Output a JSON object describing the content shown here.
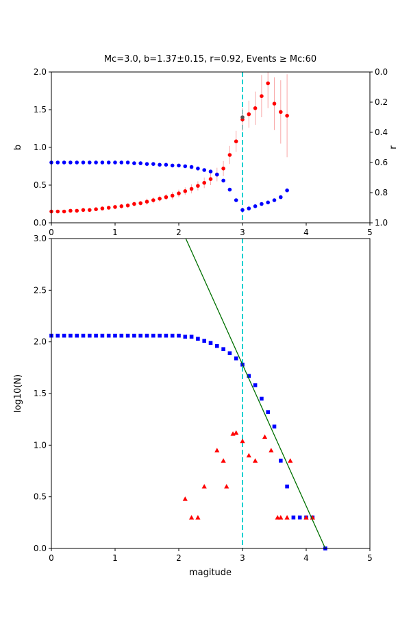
{
  "figure": {
    "background": "#ffffff",
    "accent_colors": {
      "b_series": "#ff0000",
      "r_series": "#0000ff",
      "errorbar": "#f8a8a8",
      "mc_line": "#00cccc",
      "fit_line": "#007000",
      "mc_marker": "#555555"
    }
  },
  "chart_data": [
    {
      "type": "scatter",
      "title": "Mc=3.0, b=1.37±0.15, r=0.92, Events ≥ Mc:60",
      "ylabel_left": "b",
      "ylabel_right": "r",
      "xlim": [
        0,
        5
      ],
      "ylim_left": [
        0,
        2
      ],
      "ylim_right": [
        0,
        1
      ],
      "right_axis_inverted": true,
      "xticks": [
        0,
        1,
        2,
        3,
        4,
        5
      ],
      "yticks_left": [
        "0.0",
        "0.5",
        "1.0",
        "1.5",
        "2.0"
      ],
      "yticks_right": [
        "0.0",
        "0.2",
        "0.4",
        "0.6",
        "0.8",
        "1.0"
      ],
      "grid": false,
      "legend": "none",
      "vline": {
        "x": 3.0,
        "color": "#00cccc",
        "style": "dashed"
      },
      "series": [
        {
          "name": "b-value-vs-cutoff",
          "marker": "circle",
          "color": "#ff0000",
          "errorbar_color": "#f8a8a8",
          "x": [
            0.0,
            0.1,
            0.2,
            0.3,
            0.4,
            0.5,
            0.6,
            0.7,
            0.8,
            0.9,
            1.0,
            1.1,
            1.2,
            1.3,
            1.4,
            1.5,
            1.6,
            1.7,
            1.8,
            1.9,
            2.0,
            2.1,
            2.2,
            2.3,
            2.4,
            2.5,
            2.6,
            2.7,
            2.8,
            2.9,
            3.0,
            3.1,
            3.2,
            3.3,
            3.4,
            3.5,
            3.6,
            3.7
          ],
          "y": [
            0.15,
            0.15,
            0.15,
            0.16,
            0.16,
            0.17,
            0.17,
            0.18,
            0.19,
            0.2,
            0.21,
            0.22,
            0.23,
            0.25,
            0.26,
            0.28,
            0.3,
            0.32,
            0.34,
            0.36,
            0.39,
            0.42,
            0.45,
            0.49,
            0.53,
            0.58,
            0.64,
            0.72,
            0.9,
            1.08,
            1.37,
            1.44,
            1.52,
            1.68,
            1.85,
            1.58,
            1.47,
            1.42
          ],
          "yerr": [
            0.02,
            0.02,
            0.02,
            0.02,
            0.02,
            0.02,
            0.02,
            0.02,
            0.02,
            0.02,
            0.03,
            0.03,
            0.03,
            0.03,
            0.03,
            0.04,
            0.04,
            0.04,
            0.04,
            0.05,
            0.05,
            0.05,
            0.06,
            0.06,
            0.07,
            0.08,
            0.09,
            0.1,
            0.12,
            0.14,
            0.15,
            0.18,
            0.22,
            0.28,
            0.33,
            0.35,
            0.42,
            0.55
          ]
        },
        {
          "name": "r-vs-cutoff",
          "marker": "circle",
          "color": "#0000ff",
          "axis": "right",
          "x": [
            0.0,
            0.1,
            0.2,
            0.3,
            0.4,
            0.5,
            0.6,
            0.7,
            0.8,
            0.9,
            1.0,
            1.1,
            1.2,
            1.3,
            1.4,
            1.5,
            1.6,
            1.7,
            1.8,
            1.9,
            2.0,
            2.1,
            2.2,
            2.3,
            2.4,
            2.5,
            2.6,
            2.7,
            2.8,
            2.9,
            3.0,
            3.1,
            3.2,
            3.3,
            3.4,
            3.5,
            3.6,
            3.7
          ],
          "y": [
            0.6,
            0.6,
            0.6,
            0.6,
            0.6,
            0.6,
            0.6,
            0.6,
            0.6,
            0.6,
            0.6,
            0.6,
            0.6,
            0.605,
            0.605,
            0.61,
            0.61,
            0.615,
            0.615,
            0.62,
            0.62,
            0.625,
            0.63,
            0.64,
            0.65,
            0.66,
            0.68,
            0.72,
            0.78,
            0.85,
            0.915,
            0.905,
            0.89,
            0.875,
            0.865,
            0.85,
            0.83,
            0.785
          ]
        },
        {
          "name": "b-at-mc-marker",
          "marker": "circle",
          "color": "#555555",
          "x": [
            3.0
          ],
          "y": [
            1.4
          ]
        }
      ]
    },
    {
      "type": "scatter",
      "xlabel": "magitude",
      "ylabel": "log10(N)",
      "xlim": [
        0,
        5
      ],
      "ylim": [
        0,
        3
      ],
      "xticks": [
        0,
        1,
        2,
        3,
        4,
        5
      ],
      "yticks": [
        "0.0",
        "0.5",
        "1.0",
        "1.5",
        "2.0",
        "2.5",
        "3.0"
      ],
      "grid": false,
      "legend": "none",
      "vline": {
        "x": 3.0,
        "color": "#00cccc",
        "style": "dashed"
      },
      "series": [
        {
          "name": "cumulative-counts",
          "marker": "square",
          "color": "#0000ff",
          "x": [
            0.0,
            0.1,
            0.2,
            0.3,
            0.4,
            0.5,
            0.6,
            0.7,
            0.8,
            0.9,
            1.0,
            1.1,
            1.2,
            1.3,
            1.4,
            1.5,
            1.6,
            1.7,
            1.8,
            1.9,
            2.0,
            2.1,
            2.2,
            2.3,
            2.4,
            2.5,
            2.6,
            2.7,
            2.8,
            2.9,
            3.0,
            3.1,
            3.2,
            3.3,
            3.4,
            3.5,
            3.6,
            3.7,
            3.8,
            3.9,
            4.0,
            4.1,
            4.3
          ],
          "y": [
            2.06,
            2.06,
            2.06,
            2.06,
            2.06,
            2.06,
            2.06,
            2.06,
            2.06,
            2.06,
            2.06,
            2.06,
            2.06,
            2.06,
            2.06,
            2.06,
            2.06,
            2.06,
            2.06,
            2.06,
            2.06,
            2.05,
            2.05,
            2.03,
            2.01,
            1.99,
            1.96,
            1.93,
            1.89,
            1.84,
            1.78,
            1.67,
            1.58,
            1.45,
            1.32,
            1.18,
            0.85,
            0.6,
            0.3,
            0.3,
            0.3,
            0.3,
            0.0
          ]
        },
        {
          "name": "binned-counts",
          "marker": "triangle",
          "color": "#ff0000",
          "x": [
            2.1,
            2.2,
            2.3,
            2.4,
            2.6,
            2.7,
            2.75,
            2.85,
            2.9,
            3.0,
            3.1,
            3.2,
            3.35,
            3.45,
            3.55,
            3.6,
            3.7,
            3.75,
            4.0,
            4.1
          ],
          "y": [
            0.48,
            0.3,
            0.3,
            0.6,
            0.95,
            0.85,
            0.6,
            1.11,
            1.12,
            1.04,
            0.9,
            0.85,
            1.08,
            0.95,
            0.3,
            0.3,
            0.3,
            0.85,
            0.3,
            0.3
          ]
        },
        {
          "name": "gr-fit-line",
          "marker": "line",
          "color": "#007000",
          "x": [
            2.11,
            4.3
          ],
          "y": [
            3.0,
            0.0
          ]
        }
      ]
    }
  ]
}
